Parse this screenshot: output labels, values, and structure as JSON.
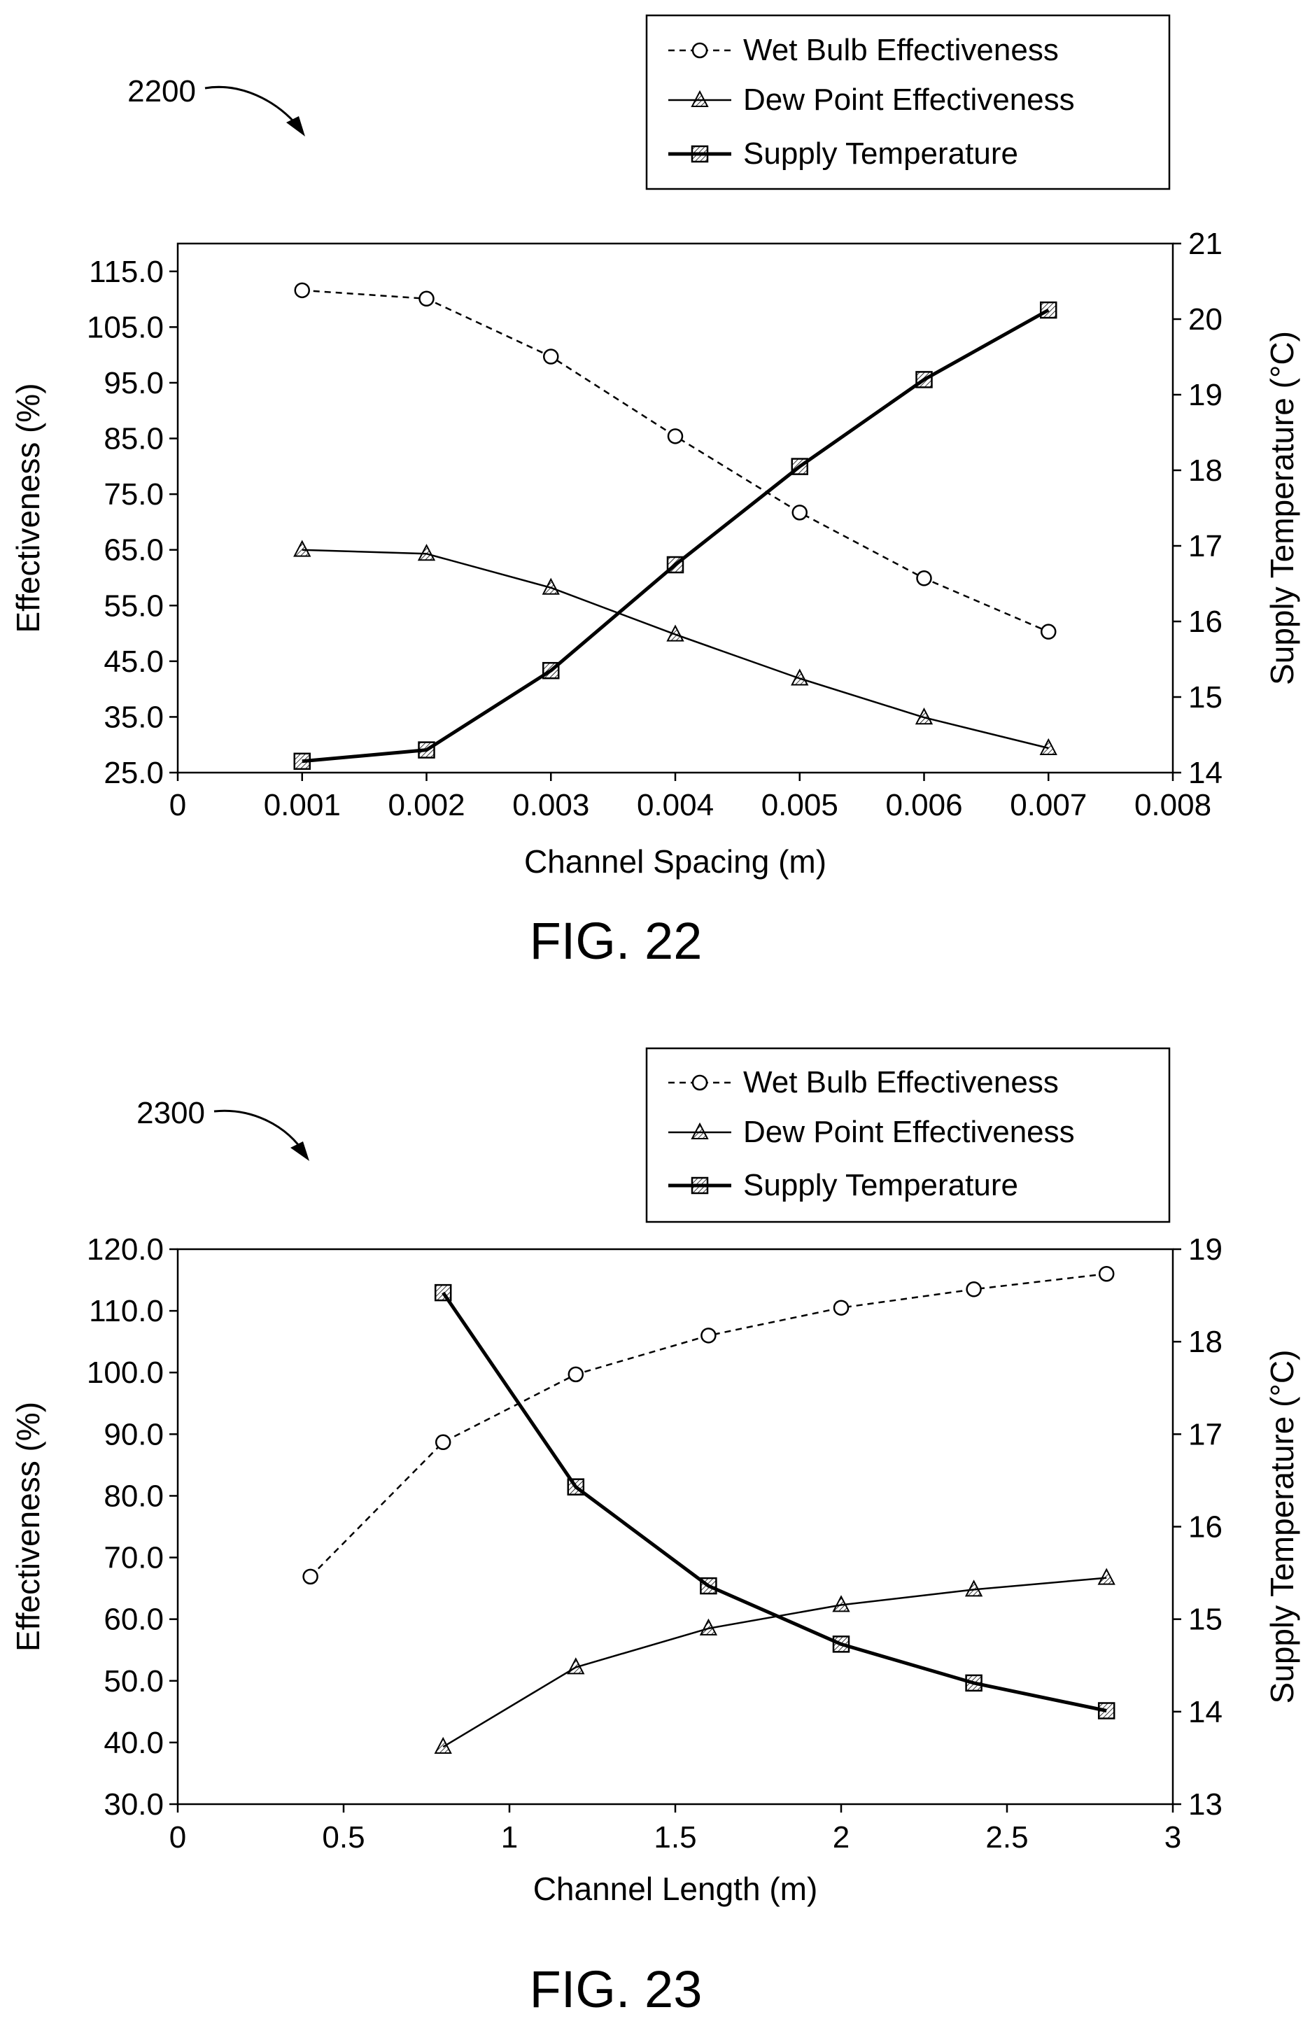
{
  "figures": [
    {
      "ref_label": "2200",
      "caption": "FIG. 22",
      "legend": [
        {
          "label": "Wet Bulb Effectiveness",
          "style": "dashed",
          "marker": "circle"
        },
        {
          "label": "Dew Point Effectiveness",
          "style": "solid-thin",
          "marker": "triangle"
        },
        {
          "label": "Supply Temperature",
          "style": "solid-thick",
          "marker": "square"
        }
      ]
    },
    {
      "ref_label": "2300",
      "caption": "FIG. 23",
      "legend": [
        {
          "label": "Wet Bulb Effectiveness",
          "style": "dashed",
          "marker": "circle"
        },
        {
          "label": "Dew Point Effectiveness",
          "style": "solid-thin",
          "marker": "triangle"
        },
        {
          "label": "Supply Temperature",
          "style": "solid-thick",
          "marker": "square"
        }
      ]
    }
  ],
  "chart_data": [
    {
      "type": "line",
      "xlabel": "Channel Spacing (m)",
      "ylabel": "Effectiveness (%)",
      "y2label": "Supply Temperature (°C)",
      "xlim": [
        0,
        0.008
      ],
      "ylim": [
        25,
        120
      ],
      "y2lim": [
        14,
        21
      ],
      "x_ticks": [
        "0",
        "0.001",
        "0.002",
        "0.003",
        "0.004",
        "0.005",
        "0.006",
        "0.007",
        "0.008"
      ],
      "y_ticks": [
        "25.0",
        "35.0",
        "45.0",
        "55.0",
        "65.0",
        "75.0",
        "85.0",
        "95.0",
        "105.0",
        "115.0"
      ],
      "y2_ticks": [
        "14",
        "15",
        "16",
        "17",
        "18",
        "19",
        "20",
        "21"
      ],
      "x": [
        0.001,
        0.002,
        0.003,
        0.004,
        0.005,
        0.006,
        0.007
      ],
      "series": [
        {
          "name": "Wet Bulb Effectiveness",
          "axis": "left",
          "values": [
            111.6,
            110.1,
            99.7,
            85.4,
            71.7,
            59.9,
            50.3
          ]
        },
        {
          "name": "Dew Point Effectiveness",
          "axis": "left",
          "values": [
            65.0,
            64.3,
            58.2,
            49.8,
            41.9,
            34.9,
            29.4
          ]
        },
        {
          "name": "Supply Temperature",
          "axis": "right",
          "values": [
            14.15,
            14.3,
            15.35,
            16.75,
            18.05,
            19.2,
            20.12
          ]
        }
      ],
      "grid": false,
      "legend_position": "top-right, above plot"
    },
    {
      "type": "line",
      "xlabel": "Channel Length (m)",
      "ylabel": "Effectiveness (%)",
      "y2label": "Supply Temperature (°C)",
      "xlim": [
        0,
        3
      ],
      "ylim": [
        30,
        120
      ],
      "y2lim": [
        13,
        19
      ],
      "x_ticks": [
        "0",
        "0.5",
        "1",
        "1.5",
        "2",
        "2.5",
        "3"
      ],
      "y_ticks": [
        "30.0",
        "40.0",
        "50.0",
        "60.0",
        "70.0",
        "80.0",
        "90.0",
        "100.0",
        "110.0",
        "120.0"
      ],
      "y2_ticks": [
        "13",
        "14",
        "15",
        "16",
        "17",
        "18",
        "19"
      ],
      "series": [
        {
          "name": "Wet Bulb Effectiveness",
          "axis": "left",
          "x": [
            0.4,
            0.8,
            1.2,
            1.6,
            2.0,
            2.4,
            2.8
          ],
          "values": [
            66.9,
            88.7,
            99.7,
            106.0,
            110.5,
            113.5,
            116.0
          ]
        },
        {
          "name": "Dew Point Effectiveness",
          "axis": "left",
          "x": [
            0.8,
            1.2,
            1.6,
            2.0,
            2.4,
            2.8
          ],
          "values": [
            39.3,
            52.2,
            58.5,
            62.3,
            64.8,
            66.7
          ]
        },
        {
          "name": "Supply Temperature",
          "axis": "right",
          "x": [
            0.8,
            1.2,
            1.6,
            2.0,
            2.4,
            2.8
          ],
          "values": [
            18.53,
            16.43,
            15.36,
            14.73,
            14.31,
            14.01
          ]
        }
      ],
      "grid": false,
      "legend_position": "top-right, above plot"
    }
  ]
}
